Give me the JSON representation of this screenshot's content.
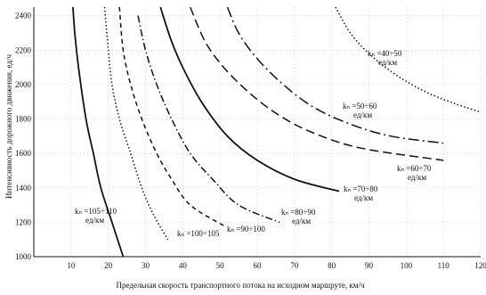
{
  "chart_data": {
    "type": "line",
    "title": "",
    "xlabel": "Предельная скорость транспортного потока на исходном маршруте, км/ч",
    "ylabel": "Интенсивность дорожного движения, ед/ч",
    "xlim": [
      0,
      120
    ],
    "ylim": [
      1000,
      2450
    ],
    "x_ticks": [
      "10",
      "20",
      "30",
      "40",
      "50",
      "60",
      "70",
      "80",
      "90",
      "100",
      "110",
      "120"
    ],
    "y_ticks": [
      "1000",
      "1200",
      "1400",
      "1600",
      "1800",
      "2000",
      "2200",
      "2400"
    ],
    "grid": "dotted",
    "series": [
      {
        "label_lines": [
          "kₙ =105÷110",
          "ед/км"
        ],
        "style": "solid",
        "points": [
          [
            10.5,
            2450
          ],
          [
            11,
            2300
          ],
          [
            12,
            2100
          ],
          [
            14,
            1800
          ],
          [
            16,
            1600
          ],
          [
            18,
            1400
          ],
          [
            21,
            1200
          ],
          [
            24,
            1000
          ]
        ]
      },
      {
        "label_lines": [
          "kₙ =100÷105"
        ],
        "style": "dotted",
        "points": [
          [
            19,
            2450
          ],
          [
            20,
            2200
          ],
          [
            21,
            2000
          ],
          [
            23,
            1800
          ],
          [
            26,
            1600
          ],
          [
            29,
            1400
          ],
          [
            32,
            1250
          ],
          [
            36,
            1100
          ]
        ]
      },
      {
        "label_lines": [
          "kₙ =90÷100"
        ],
        "style": "dashed-short",
        "points": [
          [
            23,
            2450
          ],
          [
            24,
            2200
          ],
          [
            26,
            2000
          ],
          [
            29,
            1800
          ],
          [
            33,
            1600
          ],
          [
            37,
            1450
          ],
          [
            42,
            1300
          ],
          [
            51,
            1180
          ]
        ]
      },
      {
        "label_lines": [
          "kₙ =80÷90",
          "ед/км"
        ],
        "style": "dash-dot",
        "points": [
          [
            28,
            2400
          ],
          [
            30,
            2200
          ],
          [
            33,
            2000
          ],
          [
            37,
            1800
          ],
          [
            42,
            1600
          ],
          [
            48,
            1450
          ],
          [
            55,
            1300
          ],
          [
            66,
            1200
          ]
        ]
      },
      {
        "label_lines": [
          "kₙ =70÷80",
          "ед/км"
        ],
        "style": "solid",
        "points": [
          [
            34,
            2450
          ],
          [
            37,
            2250
          ],
          [
            40,
            2100
          ],
          [
            45,
            1900
          ],
          [
            52,
            1700
          ],
          [
            60,
            1560
          ],
          [
            70,
            1450
          ],
          [
            82,
            1380
          ]
        ]
      },
      {
        "label_lines": [
          "kₙ =60÷70",
          "ед/км"
        ],
        "style": "dashed-long",
        "points": [
          [
            42,
            2450
          ],
          [
            46,
            2250
          ],
          [
            51,
            2100
          ],
          [
            58,
            1950
          ],
          [
            66,
            1820
          ],
          [
            75,
            1720
          ],
          [
            88,
            1630
          ],
          [
            110,
            1560
          ]
        ]
      },
      {
        "label_lines": [
          "kₙ =50÷60",
          "ед/км"
        ],
        "style": "dash-dot-long",
        "points": [
          [
            52,
            2450
          ],
          [
            55,
            2300
          ],
          [
            60,
            2150
          ],
          [
            67,
            2000
          ],
          [
            75,
            1870
          ],
          [
            85,
            1770
          ],
          [
            96,
            1700
          ],
          [
            110,
            1660
          ]
        ]
      },
      {
        "label_lines": [
          "kₙ =40÷50",
          "ед/км"
        ],
        "style": "dotted",
        "points": [
          [
            81,
            2450
          ],
          [
            85,
            2300
          ],
          [
            90,
            2180
          ],
          [
            97,
            2060
          ],
          [
            105,
            1960
          ],
          [
            113,
            1890
          ],
          [
            120,
            1840
          ]
        ]
      }
    ]
  }
}
